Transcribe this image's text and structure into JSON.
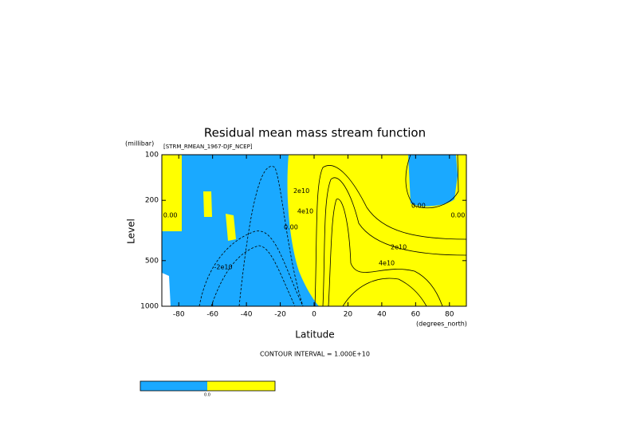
{
  "chart_data": {
    "type": "contour",
    "title": "Residual mean mass stream function",
    "subtitle": "[STRM_RMEAN_1967-DJF_NCEP]",
    "x_label": "Latitude",
    "x_unit_label": "(degrees_north)",
    "y_label": "Level",
    "y_unit_label": "(millibar)",
    "xlim": [
      -90,
      90
    ],
    "xticks": [
      -80,
      -60,
      -40,
      -20,
      0,
      20,
      40,
      60,
      80
    ],
    "ylim": [
      1000,
      100
    ],
    "yticks": [
      100,
      200,
      500,
      1000
    ],
    "log_y": true,
    "negative_color": "#1aa9ff",
    "positive_color": "#ffff00",
    "footnote": "CONTOUR INTERVAL = 1.000E+10",
    "colorbar_label": "0.0",
    "annotations": [
      {
        "text": "0.00",
        "x": -85,
        "y": 251
      },
      {
        "text": "-2e10",
        "x": -53.7,
        "y": 551
      },
      {
        "text": "0.00",
        "x": -13.7,
        "y": 301
      },
      {
        "text": "2e10",
        "x": -7.5,
        "y": 174
      },
      {
        "text": "4e10",
        "x": -5.2,
        "y": 236
      },
      {
        "text": "2e10",
        "x": 50,
        "y": 408
      },
      {
        "text": "4e10",
        "x": 42.9,
        "y": 520
      },
      {
        "text": "0.00",
        "x": 61.7,
        "y": 217
      },
      {
        "text": "0.00",
        "x": 85,
        "y": 251
      }
    ]
  }
}
